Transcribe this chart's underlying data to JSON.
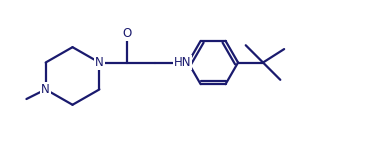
{
  "bg_color": "#ffffff",
  "line_color": "#1a1a6e",
  "line_width": 1.6,
  "font_size": 8.5,
  "figsize": [
    3.87,
    1.65
  ],
  "dpi": 100,
  "xlim": [
    0,
    10
  ],
  "ylim": [
    0,
    4.26
  ]
}
